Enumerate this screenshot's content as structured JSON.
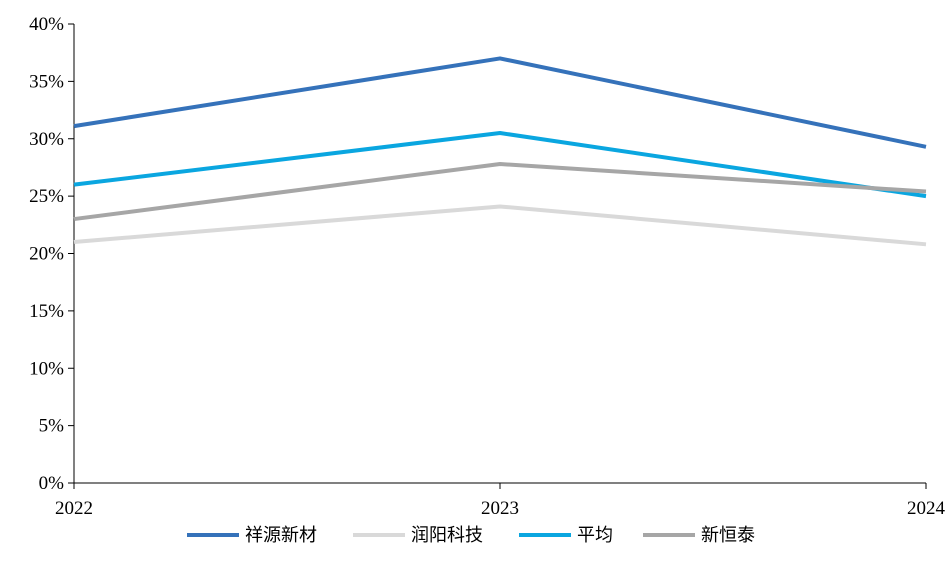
{
  "chart_data": {
    "type": "line",
    "title": "",
    "xlabel": "",
    "ylabel": "",
    "x": [
      "2022",
      "2023",
      "2024"
    ],
    "ylim": [
      0,
      40
    ],
    "yticks": [
      "0%",
      "5%",
      "10%",
      "15%",
      "20%",
      "25%",
      "30%",
      "35%",
      "40%"
    ],
    "grid": false,
    "legend_position": "bottom",
    "series": [
      {
        "name": "祥源新材",
        "color": "#3572BA",
        "values": [
          31.1,
          37.0,
          29.3
        ]
      },
      {
        "name": "润阳科技",
        "color": "#D9D9D9",
        "values": [
          21.0,
          24.1,
          20.8
        ]
      },
      {
        "name": "平均",
        "color": "#0AA6E0",
        "values": [
          26.0,
          30.5,
          25.0
        ]
      },
      {
        "name": "新恒泰",
        "color": "#A6A6A6",
        "values": [
          23.0,
          27.8,
          25.4
        ]
      }
    ]
  }
}
